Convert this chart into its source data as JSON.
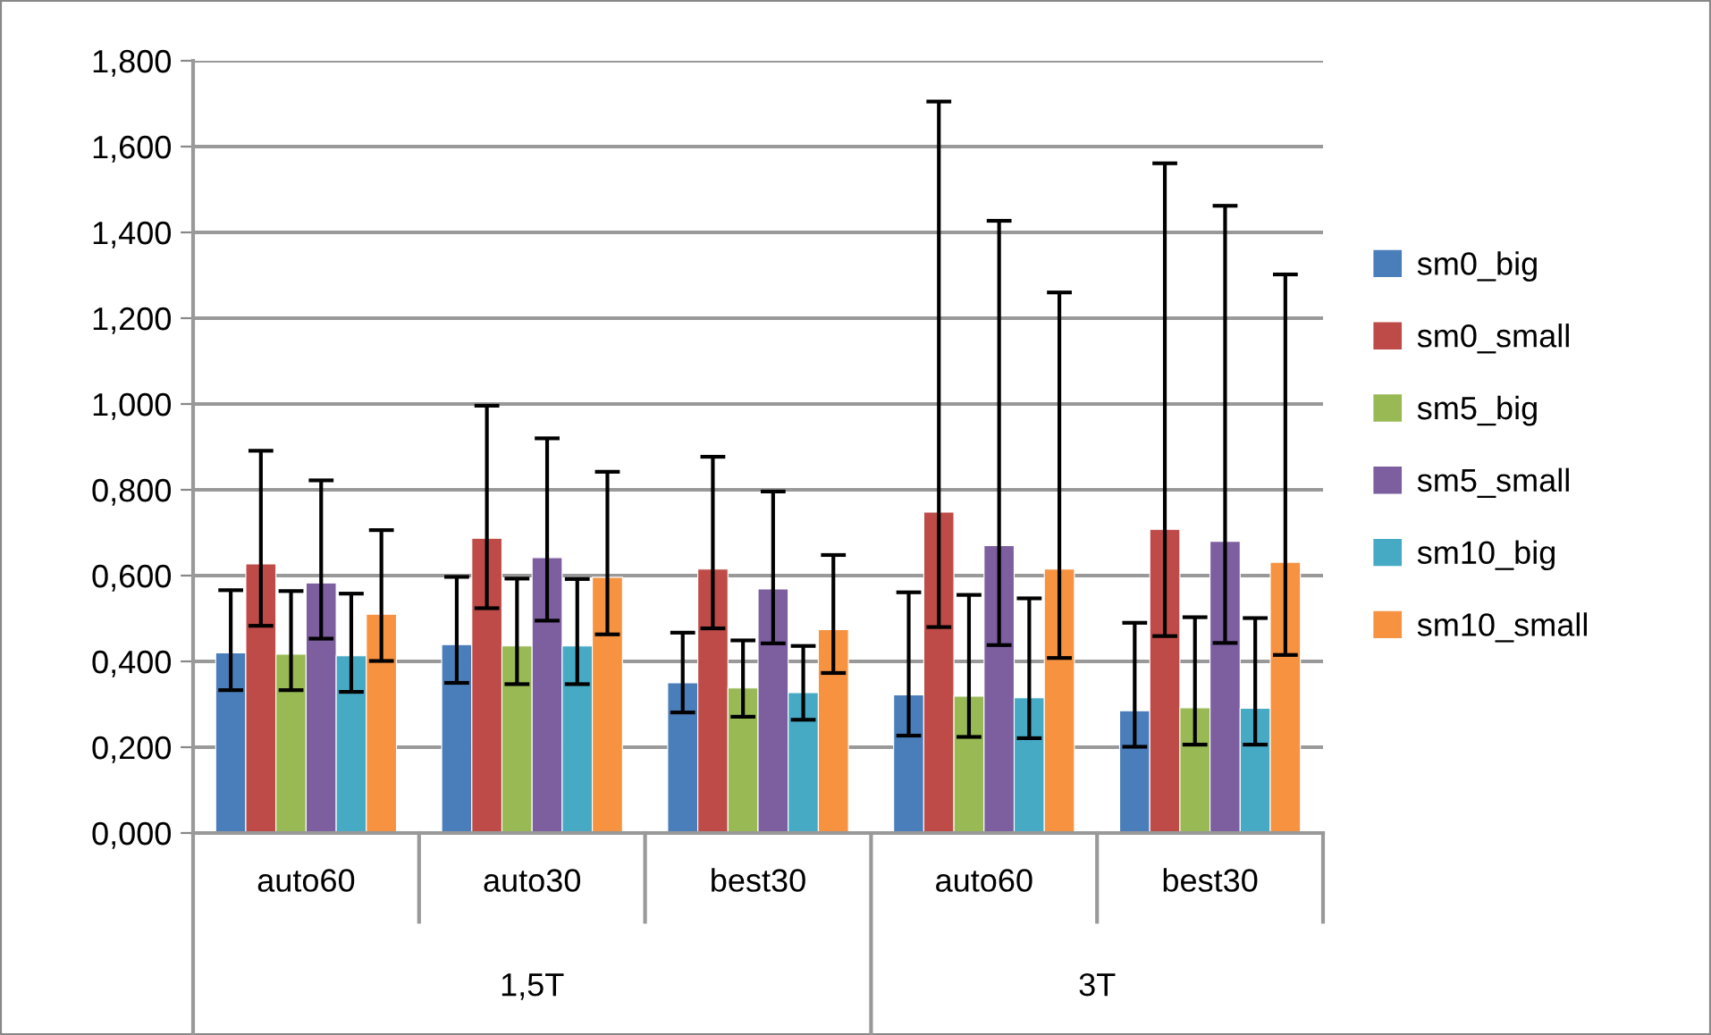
{
  "chart_data": {
    "type": "bar",
    "categories": [
      "auto60",
      "auto30",
      "best30",
      "auto60",
      "best30"
    ],
    "annotations": [
      "1,5T",
      "3T"
    ],
    "series": [
      {
        "name": "sm0_big",
        "color": "#4a7ebb",
        "values": [
          0.42,
          0.439,
          0.35,
          0.322,
          0.285
        ],
        "errors": [
          [
            0.333,
            0.566
          ],
          [
            0.35,
            0.597
          ],
          [
            0.281,
            0.467
          ],
          [
            0.227,
            0.561
          ],
          [
            0.201,
            0.49
          ]
        ]
      },
      {
        "name": "sm0_small",
        "color": "#be4b48",
        "values": [
          0.627,
          0.687,
          0.615,
          0.748,
          0.708
        ],
        "errors": [
          [
            0.483,
            0.891
          ],
          [
            0.524,
            0.996
          ],
          [
            0.477,
            0.877
          ],
          [
            0.48,
            1.705
          ],
          [
            0.459,
            1.561
          ]
        ]
      },
      {
        "name": "sm5_big",
        "color": "#98b954",
        "values": [
          0.417,
          0.436,
          0.338,
          0.319,
          0.292
        ],
        "errors": [
          [
            0.333,
            0.564
          ],
          [
            0.347,
            0.593
          ],
          [
            0.271,
            0.449
          ],
          [
            0.224,
            0.555
          ],
          [
            0.206,
            0.503
          ]
        ]
      },
      {
        "name": "sm5_small",
        "color": "#7d5fa0",
        "values": [
          0.583,
          0.642,
          0.569,
          0.67,
          0.68
        ],
        "errors": [
          [
            0.453,
            0.822
          ],
          [
            0.495,
            0.92
          ],
          [
            0.442,
            0.796
          ],
          [
            0.438,
            1.427
          ],
          [
            0.443,
            1.462
          ]
        ]
      },
      {
        "name": "sm10_big",
        "color": "#46aac5",
        "values": [
          0.413,
          0.436,
          0.327,
          0.315,
          0.291
        ],
        "errors": [
          [
            0.329,
            0.558
          ],
          [
            0.347,
            0.592
          ],
          [
            0.264,
            0.436
          ],
          [
            0.221,
            0.547
          ],
          [
            0.206,
            0.501
          ]
        ]
      },
      {
        "name": "sm10_small",
        "color": "#f69240",
        "values": [
          0.51,
          0.596,
          0.474,
          0.615,
          0.631
        ],
        "errors": [
          [
            0.401,
            0.706
          ],
          [
            0.463,
            0.842
          ],
          [
            0.373,
            0.648
          ],
          [
            0.408,
            1.26
          ],
          [
            0.415,
            1.302
          ]
        ]
      }
    ],
    "ylim": [
      0,
      1.8
    ],
    "yticks": [
      {
        "value": 0,
        "label": "0,000"
      },
      {
        "value": 0.2,
        "label": "0,200"
      },
      {
        "value": 0.4,
        "label": "0,400"
      },
      {
        "value": 0.6,
        "label": "0,600"
      },
      {
        "value": 0.8,
        "label": "0,800"
      },
      {
        "value": 1.0,
        "label": "1,000"
      },
      {
        "value": 1.2,
        "label": "1,200"
      },
      {
        "value": 1.4,
        "label": "1,400"
      },
      {
        "value": 1.6,
        "label": "1,600"
      },
      {
        "value": 1.8,
        "label": "1,800"
      }
    ],
    "grid": "y",
    "legend": "right"
  }
}
